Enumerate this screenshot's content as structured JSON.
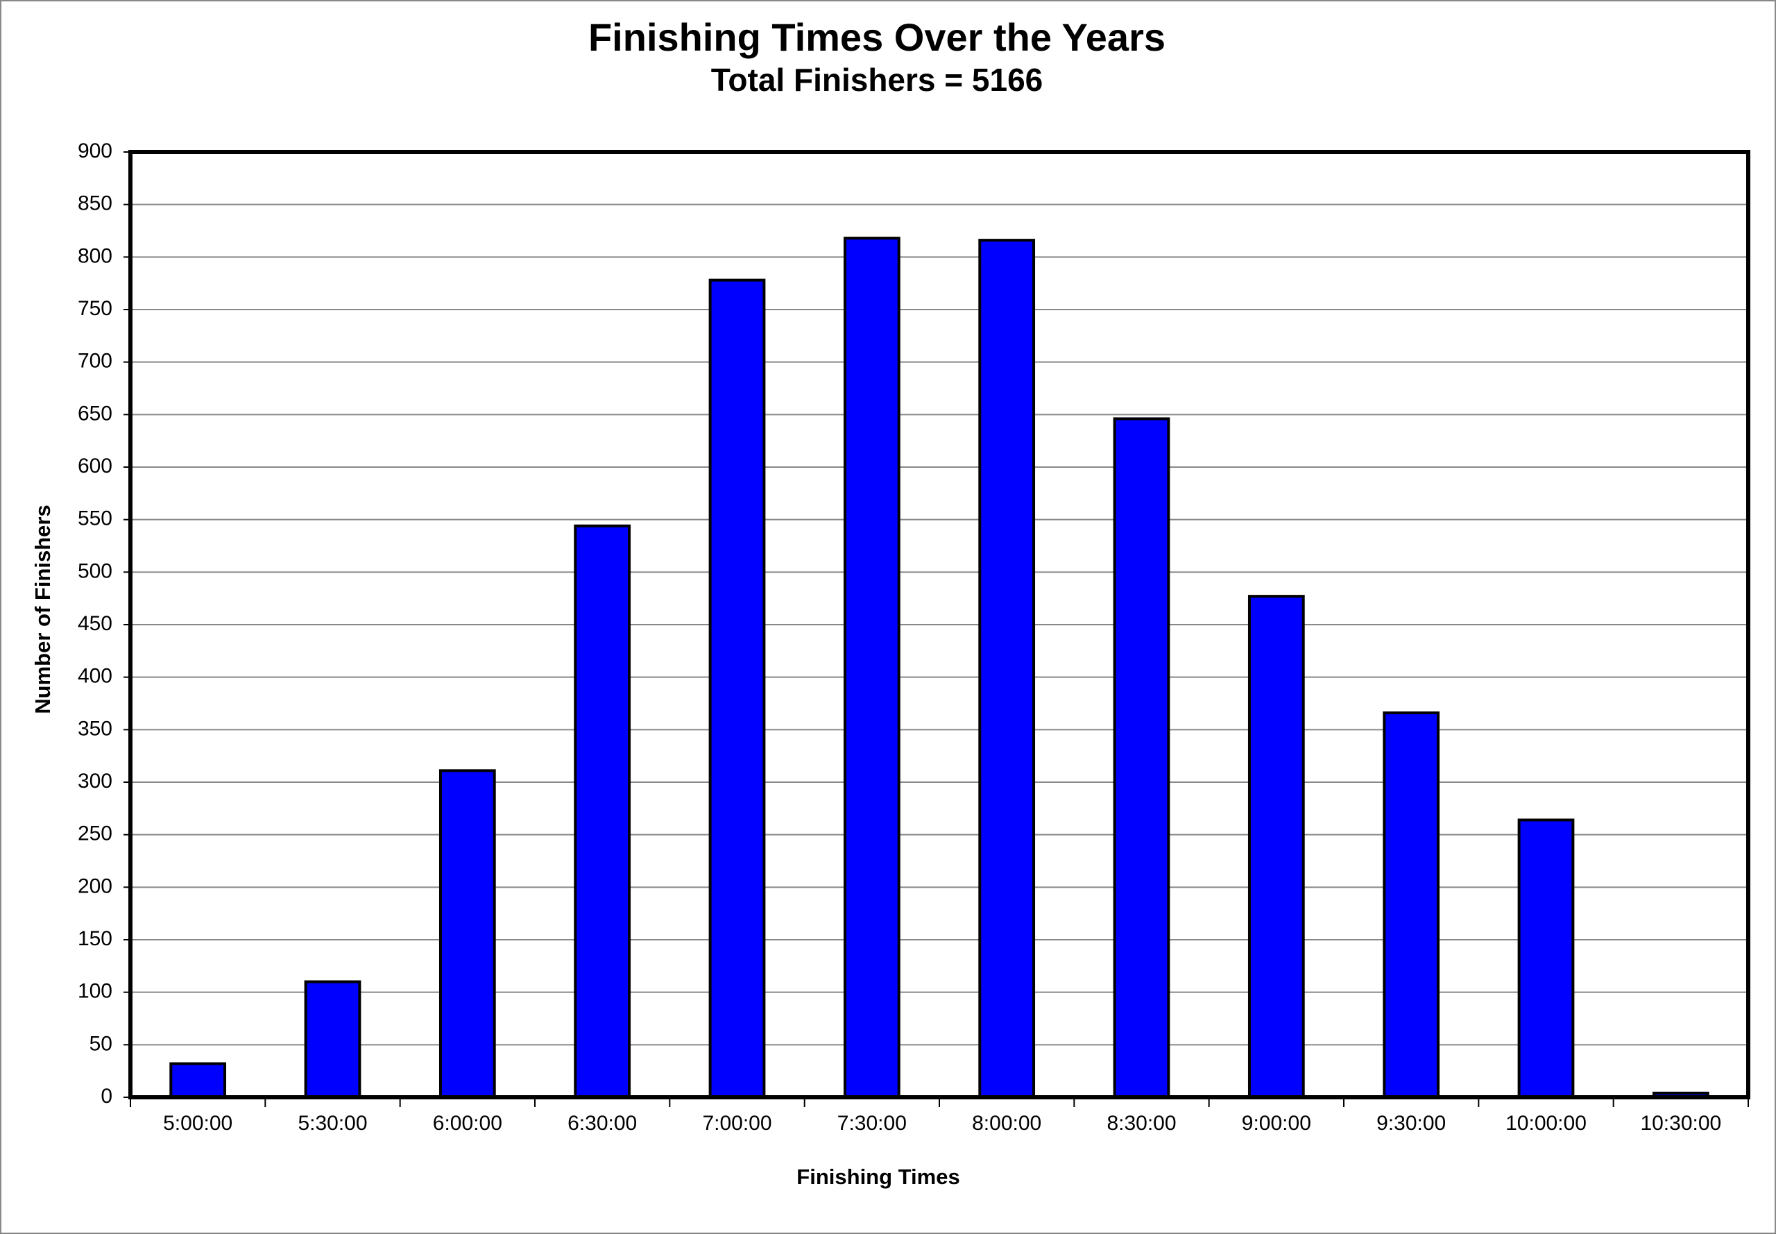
{
  "chart_data": {
    "type": "bar",
    "title": "Finishing Times Over the Years",
    "subtitle": "Total Finishers = 5166",
    "x_label": "Finishing Times",
    "y_label": "Number of Finishers",
    "categories": [
      "5:00:00",
      "5:30:00",
      "6:00:00",
      "6:30:00",
      "7:00:00",
      "7:30:00",
      "8:00:00",
      "8:30:00",
      "9:00:00",
      "9:30:00",
      "10:00:00",
      "10:30:00"
    ],
    "values": [
      32,
      110,
      311,
      544,
      778,
      818,
      816,
      646,
      477,
      366,
      264,
      4
    ],
    "color": "#0000ff",
    "ylim": [
      0,
      900
    ],
    "yticks": [
      0,
      50,
      100,
      150,
      200,
      250,
      300,
      350,
      400,
      450,
      500,
      550,
      600,
      650,
      700,
      750,
      800,
      850,
      900
    ],
    "grid": true
  }
}
